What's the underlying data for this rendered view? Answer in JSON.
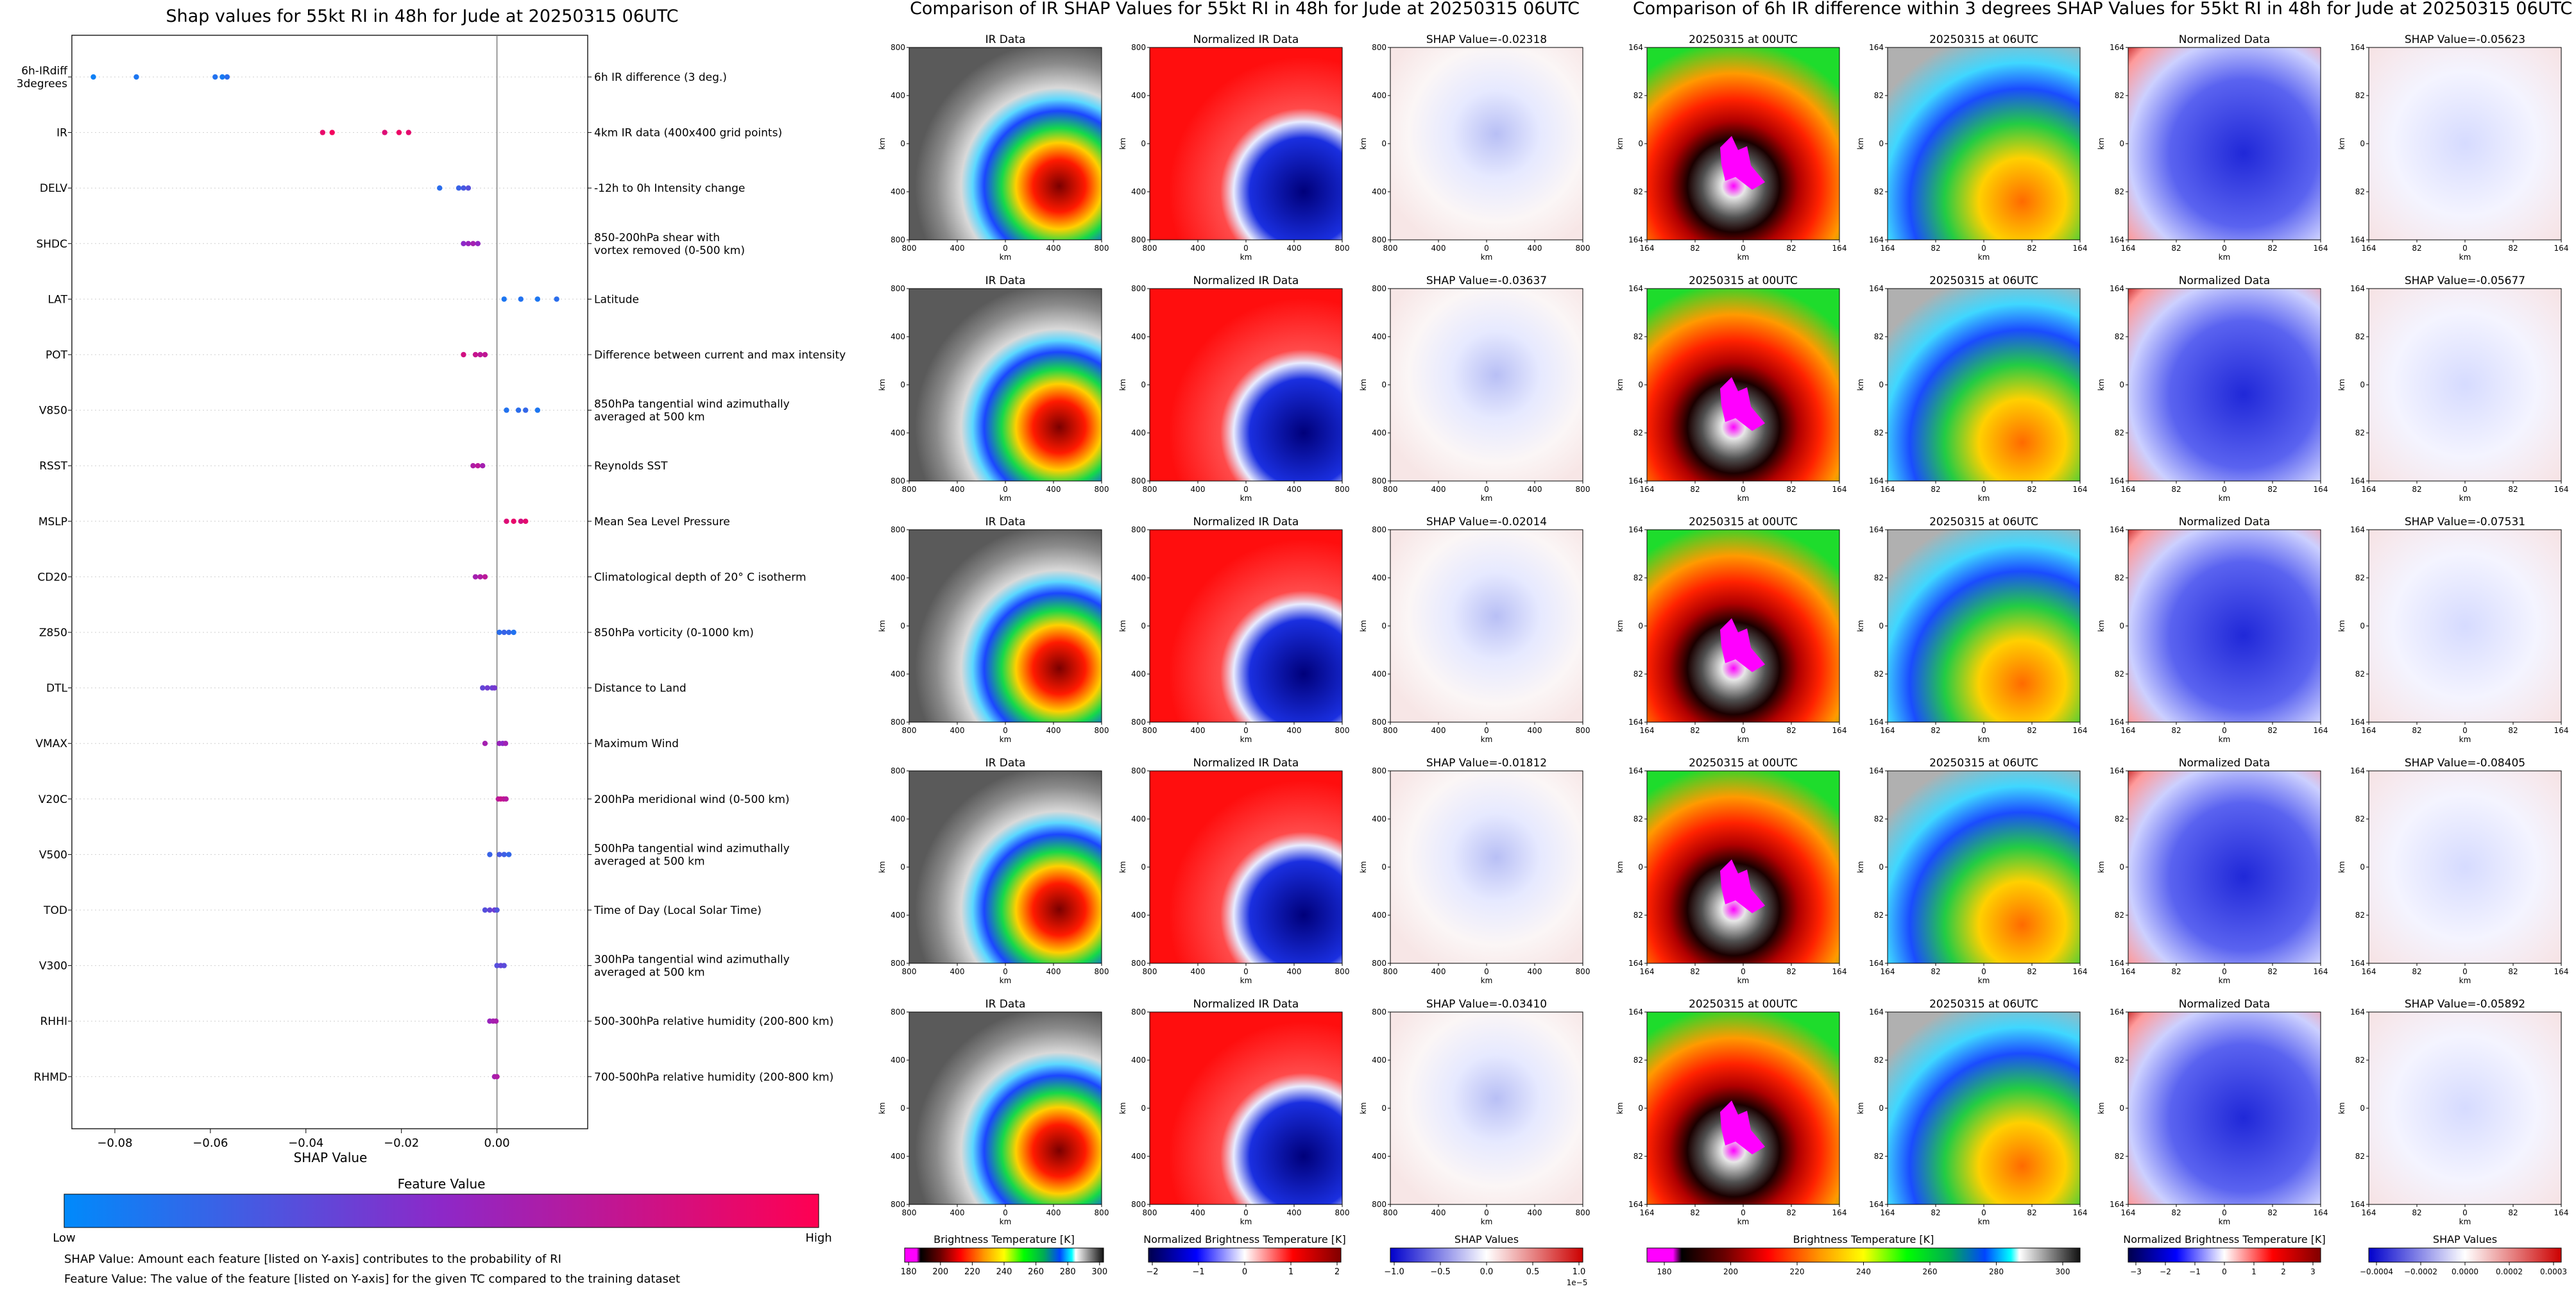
{
  "left_panel": {
    "title": "Shap values for 55kt RI in 48h for Jude at 20250315 06UTC",
    "xlabel": "SHAP Value",
    "xticks": [
      "−0.08",
      "−0.06",
      "−0.04",
      "−0.02",
      "0.00"
    ],
    "colorbar_title": "Feature Value",
    "colorbar_low": "Low",
    "colorbar_high": "High",
    "footnote1": "SHAP Value: Amount each feature [listed on Y-axis] contributes to the probability of RI",
    "footnote2": "Feature Value: The value of the feature [listed on Y-axis] for the given TC compared to the training dataset",
    "features": [
      {
        "code": "6h-IRdiff 3degrees",
        "code_lines": [
          "6h-IRdiff",
          "3degrees"
        ],
        "desc_lines": [
          "6h IR difference (3 deg.)"
        ]
      },
      {
        "code": "IR",
        "code_lines": [
          "IR"
        ],
        "desc_lines": [
          "4km IR data (400x400 grid points)"
        ]
      },
      {
        "code": "DELV",
        "code_lines": [
          "DELV"
        ],
        "desc_lines": [
          "-12h to 0h Intensity change"
        ]
      },
      {
        "code": "SHDC",
        "code_lines": [
          "SHDC"
        ],
        "desc_lines": [
          "850-200hPa shear with",
          "vortex removed (0-500 km)"
        ]
      },
      {
        "code": "LAT",
        "code_lines": [
          "LAT"
        ],
        "desc_lines": [
          "Latitude"
        ]
      },
      {
        "code": "POT",
        "code_lines": [
          "POT"
        ],
        "desc_lines": [
          "Difference between current and max intensity"
        ]
      },
      {
        "code": "V850",
        "code_lines": [
          "V850"
        ],
        "desc_lines": [
          "850hPa tangential wind azimuthally",
          "averaged at 500 km"
        ]
      },
      {
        "code": "RSST",
        "code_lines": [
          "RSST"
        ],
        "desc_lines": [
          "Reynolds SST"
        ]
      },
      {
        "code": "MSLP",
        "code_lines": [
          "MSLP"
        ],
        "desc_lines": [
          "Mean Sea Level Pressure"
        ]
      },
      {
        "code": "CD20",
        "code_lines": [
          "CD20"
        ],
        "desc_lines": [
          "Climatological depth of 20° C isotherm"
        ]
      },
      {
        "code": "Z850",
        "code_lines": [
          "Z850"
        ],
        "desc_lines": [
          "850hPa vorticity (0-1000 km)"
        ]
      },
      {
        "code": "DTL",
        "code_lines": [
          "DTL"
        ],
        "desc_lines": [
          "Distance to Land"
        ]
      },
      {
        "code": "VMAX",
        "code_lines": [
          "VMAX"
        ],
        "desc_lines": [
          "Maximum Wind"
        ]
      },
      {
        "code": "V20C",
        "code_lines": [
          "V20C"
        ],
        "desc_lines": [
          "200hPa meridional wind (0-500 km)"
        ]
      },
      {
        "code": "V500",
        "code_lines": [
          "V500"
        ],
        "desc_lines": [
          "500hPa tangential wind azimuthally",
          "averaged at 500 km"
        ]
      },
      {
        "code": "TOD",
        "code_lines": [
          "TOD"
        ],
        "desc_lines": [
          "Time of Day (Local Solar Time)"
        ]
      },
      {
        "code": "V300",
        "code_lines": [
          "V300"
        ],
        "desc_lines": [
          "300hPa tangential wind azimuthally",
          "averaged at 500 km"
        ]
      },
      {
        "code": "RHHI",
        "code_lines": [
          "RHHI"
        ],
        "desc_lines": [
          "500-300hPa relative humidity (200-800 km)"
        ]
      },
      {
        "code": "RHMD",
        "code_lines": [
          "RHMD"
        ],
        "desc_lines": [
          "700-500hPa relative humidity (200-800 km)"
        ]
      }
    ]
  },
  "chart_data": [
    {
      "type": "scatter",
      "title": "Shap values for 55kt RI in 48h for Jude at 20250315 06UTC",
      "xlabel": "SHAP Value",
      "xlim": [
        -0.089,
        0.019
      ],
      "features": [
        "6h-IRdiff 3degrees",
        "IR",
        "DELV",
        "SHDC",
        "LAT",
        "POT",
        "V850",
        "RSST",
        "MSLP",
        "CD20",
        "Z850",
        "DTL",
        "VMAX",
        "V20C",
        "V500",
        "TOD",
        "V300",
        "RHHI",
        "RHMD"
      ],
      "points": [
        {
          "feature": "6h-IRdiff 3degrees",
          "shap": [
            -0.0845,
            -0.0755,
            -0.059,
            -0.0575,
            -0.0565
          ],
          "value": [
            0.05,
            0.1,
            0.12,
            0.08,
            0.15
          ]
        },
        {
          "feature": "IR",
          "shap": [
            -0.0365,
            -0.0345,
            -0.0235,
            -0.0205,
            -0.0185
          ],
          "value": [
            0.9,
            0.95,
            0.85,
            0.92,
            0.88
          ]
        },
        {
          "feature": "DELV",
          "shap": [
            -0.012,
            -0.008,
            -0.007,
            -0.006
          ],
          "value": [
            0.15,
            0.2,
            0.25,
            0.3
          ]
        },
        {
          "feature": "SHDC",
          "shap": [
            -0.007,
            -0.006,
            -0.005,
            -0.004
          ],
          "value": [
            0.5,
            0.55,
            0.6,
            0.52
          ]
        },
        {
          "feature": "LAT",
          "shap": [
            0.0015,
            0.005,
            0.0085,
            0.0125
          ],
          "value": [
            0.1,
            0.12,
            0.1,
            0.15
          ]
        },
        {
          "feature": "POT",
          "shap": [
            -0.007,
            -0.0045,
            -0.0035,
            -0.0025
          ],
          "value": [
            0.8,
            0.75,
            0.7,
            0.72
          ]
        },
        {
          "feature": "V850",
          "shap": [
            0.002,
            0.0045,
            0.006,
            0.0085
          ],
          "value": [
            0.12,
            0.15,
            0.18,
            0.1
          ]
        },
        {
          "feature": "RSST",
          "shap": [
            -0.005,
            -0.004,
            -0.003
          ],
          "value": [
            0.65,
            0.7,
            0.6
          ]
        },
        {
          "feature": "MSLP",
          "shap": [
            0.002,
            0.0035,
            0.005,
            0.006
          ],
          "value": [
            0.85,
            0.9,
            0.8,
            0.88
          ]
        },
        {
          "feature": "CD20",
          "shap": [
            -0.0045,
            -0.0035,
            -0.0025
          ],
          "value": [
            0.6,
            0.65,
            0.7
          ]
        },
        {
          "feature": "Z850",
          "shap": [
            0.0005,
            0.0015,
            0.0025,
            0.0035
          ],
          "value": [
            0.15,
            0.2,
            0.18,
            0.12
          ]
        },
        {
          "feature": "DTL",
          "shap": [
            -0.003,
            -0.002,
            -0.001,
            -0.0005
          ],
          "value": [
            0.35,
            0.4,
            0.38,
            0.42
          ]
        },
        {
          "feature": "VMAX",
          "shap": [
            -0.0025,
            0.0005,
            0.0012,
            0.0018
          ],
          "value": [
            0.6,
            0.55,
            0.5,
            0.58
          ]
        },
        {
          "feature": "V20C",
          "shap": [
            0.0003,
            0.0008,
            0.0014,
            0.0019
          ],
          "value": [
            0.7,
            0.75,
            0.72,
            0.68
          ]
        },
        {
          "feature": "V500",
          "shap": [
            -0.0015,
            0.0005,
            0.0015,
            0.0025
          ],
          "value": [
            0.2,
            0.25,
            0.22,
            0.18
          ]
        },
        {
          "feature": "TOD",
          "shap": [
            -0.0025,
            -0.0015,
            -0.0005,
            0.0
          ],
          "value": [
            0.3,
            0.35,
            0.4,
            0.28
          ]
        },
        {
          "feature": "V300",
          "shap": [
            0.0,
            0.0008,
            0.0015
          ],
          "value": [
            0.3,
            0.35,
            0.32
          ]
        },
        {
          "feature": "RHHI",
          "shap": [
            -0.0015,
            -0.0008,
            -0.0002
          ],
          "value": [
            0.55,
            0.6,
            0.62
          ]
        },
        {
          "feature": "RHMD",
          "shap": [
            -0.0005,
            0.0
          ],
          "value": [
            0.6,
            0.65
          ]
        }
      ]
    },
    {
      "type": "heatmap",
      "title": "Comparison of IR SHAP Values for 55kt RI in 48h for Jude at 20250315 06UTC",
      "columns": [
        "IR Data",
        "Normalized IR Data",
        "SHAP Value"
      ],
      "shap_values": [
        "-0.02318",
        "-0.03637",
        "-0.02014",
        "-0.01812",
        "-0.03410"
      ]
    },
    {
      "type": "heatmap",
      "title": "Comparison of 6h IR difference within 3 degrees SHAP Values for 55kt RI in 48h for Jude at 20250315 06UTC",
      "columns": [
        "20250315 at 00UTC",
        "20250315 at 06UTC",
        "Normalized Data",
        "SHAP Value"
      ],
      "shap_values": [
        "-0.05623",
        "-0.05677",
        "-0.07531",
        "-0.08405",
        "-0.05892"
      ]
    }
  ],
  "ir_section": {
    "title": "Comparison of IR SHAP Values for 55kt RI in 48h for Jude at 20250315 06UTC",
    "col_ir": "IR Data",
    "col_norm": "Normalized IR Data",
    "shap_prefix": "SHAP Value=",
    "shap_values": [
      "-0.02318",
      "-0.03637",
      "-0.02014",
      "-0.01812",
      "-0.03410"
    ],
    "axis_unit": "km",
    "yticks": [
      "800",
      "400",
      "0",
      "400",
      "800"
    ],
    "xticks": [
      "800",
      "400",
      "0",
      "400",
      "800"
    ],
    "cbar_ir_label": "Brightness Temperature [K]",
    "cbar_ir_ticks": [
      "180",
      "200",
      "220",
      "240",
      "260",
      "280",
      "300"
    ],
    "cbar_norm_label": "Normalized Brightness Temperature [K]",
    "cbar_norm_ticks": [
      "−2",
      "−1",
      "0",
      "1",
      "2"
    ],
    "cbar_shap_label": "SHAP Values",
    "cbar_shap_ticks": [
      "−1.0",
      "−0.5",
      "0.0",
      "0.5",
      "1.0"
    ],
    "cbar_shap_exp": "1e−5"
  },
  "diff_section": {
    "title": "Comparison of 6h IR difference within 3 degrees SHAP Values for 55kt RI in 48h for Jude at 20250315 06UTC",
    "col_t0": "20250315 at 00UTC",
    "col_t1": "20250315 at 06UTC",
    "col_norm": "Normalized Data",
    "shap_prefix": "SHAP Value=",
    "shap_values": [
      "-0.05623",
      "-0.05677",
      "-0.07531",
      "-0.08405",
      "-0.05892"
    ],
    "axis_unit": "km",
    "yticks": [
      "164",
      "82",
      "0",
      "82",
      "164"
    ],
    "xticks": [
      "164",
      "82",
      "0",
      "82",
      "164"
    ],
    "cbar_ir_label": "Brightness Temperature [K]",
    "cbar_ir_ticks": [
      "180",
      "200",
      "220",
      "240",
      "260",
      "280",
      "300"
    ],
    "cbar_norm_label": "Normalized Brightness Temperature [K]",
    "cbar_norm_ticks": [
      "−3",
      "−2",
      "−1",
      "0",
      "1",
      "2",
      "3"
    ],
    "cbar_shap_label": "SHAP Values",
    "cbar_shap_ticks": [
      "−0.0004",
      "−0.0002",
      "0.0000",
      "0.0002",
      "0.0003"
    ]
  },
  "colors": {
    "low": "#1e88ff",
    "mid": "#8a2be2",
    "high": "#ff0052"
  }
}
